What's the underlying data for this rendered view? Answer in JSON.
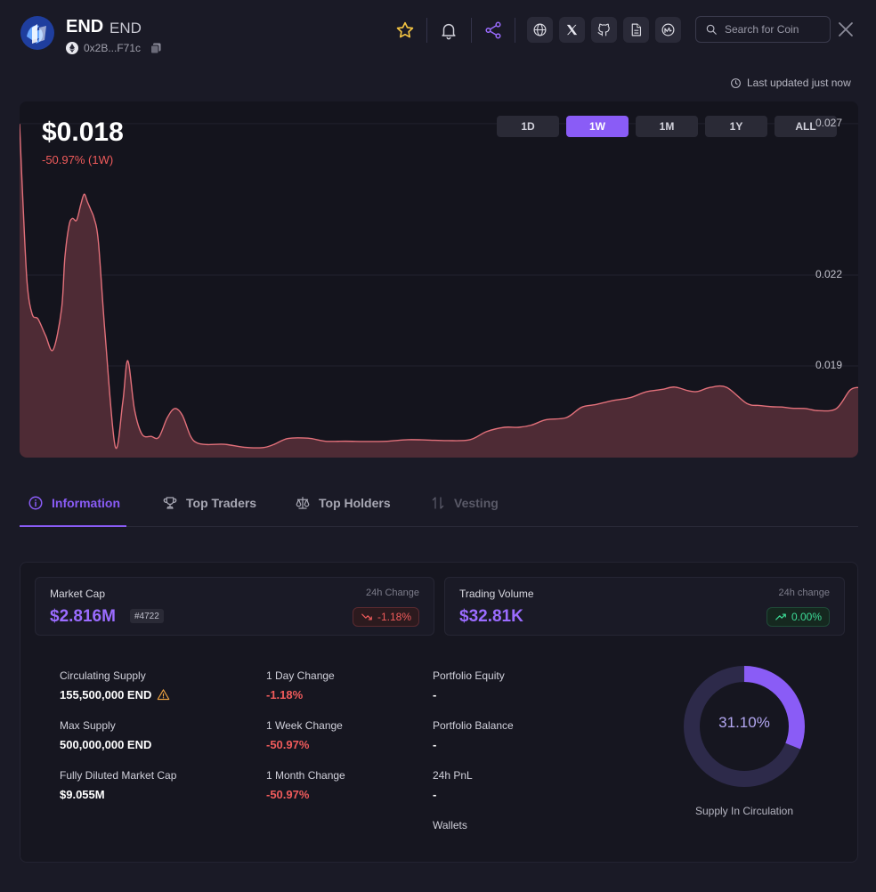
{
  "coin": {
    "name": "END",
    "ticker": "END",
    "address": "0x2B...F71c"
  },
  "search": {
    "placeholder": "Search for Coin"
  },
  "updated_text": "Last updated just now",
  "price_header": {
    "price": "$0.018",
    "change": "-50.97% (1W)"
  },
  "ranges": [
    {
      "label": "1D",
      "active": false
    },
    {
      "label": "1W",
      "active": true
    },
    {
      "label": "1M",
      "active": false
    },
    {
      "label": "1Y",
      "active": false
    },
    {
      "label": "ALL",
      "active": false
    }
  ],
  "chart_data": {
    "type": "area",
    "y_tick_labels": [
      "0.027",
      "0.022",
      "0.019"
    ],
    "y_ticks": [
      0.027,
      0.022,
      0.019
    ],
    "ylim": [
      0.01597,
      0.02738
    ],
    "x": [
      0,
      0.4,
      0.9,
      1.5,
      2.2,
      3.1,
      4.0,
      5.0,
      5.4,
      5.9,
      6.3,
      6.8,
      7.3,
      7.7,
      8.1,
      8.5,
      8.9,
      9.4,
      10.2,
      11.4,
      12.3,
      12.9,
      13.7,
      14.6,
      15.7,
      16.6,
      17.6,
      18.5,
      19.4,
      20.4,
      21.2,
      22.4,
      24.4,
      26.8,
      29.0,
      30.3,
      32.0,
      34.4,
      36.5,
      38.9,
      41.5,
      43.8,
      46.3,
      48.6,
      51.0,
      53.7,
      55.7,
      57.8,
      59.5,
      61.0,
      62.8,
      65.2,
      67.0,
      68.7,
      70.5,
      72.8,
      74.7,
      76.6,
      78.1,
      79.7,
      80.8,
      82.4,
      84.3,
      86.7,
      88.3,
      89.7,
      90.9,
      92.1,
      93.7,
      95.3,
      97.4,
      99.0,
      100
    ],
    "values": [
      0.02699,
      0.02441,
      0.02174,
      0.02071,
      0.02055,
      0.02,
      0.01953,
      0.02087,
      0.02258,
      0.02364,
      0.02387,
      0.02381,
      0.02433,
      0.02467,
      0.02441,
      0.02415,
      0.02386,
      0.02309,
      0.02004,
      0.01634,
      0.01779,
      0.01917,
      0.01756,
      0.01674,
      0.01667,
      0.01664,
      0.01728,
      0.01759,
      0.01737,
      0.01667,
      0.01645,
      0.0164,
      0.01641,
      0.01631,
      0.0163,
      0.0164,
      0.0166,
      0.01661,
      0.01651,
      0.01651,
      0.0165,
      0.01651,
      0.01656,
      0.01655,
      0.01653,
      0.01656,
      0.01683,
      0.01697,
      0.01697,
      0.01704,
      0.01722,
      0.01729,
      0.01763,
      0.01772,
      0.01784,
      0.01795,
      0.01814,
      0.01822,
      0.0183,
      0.01818,
      0.01815,
      0.01829,
      0.01829,
      0.01776,
      0.01769,
      0.01765,
      0.01764,
      0.0176,
      0.01759,
      0.01752,
      0.01759,
      0.01819,
      0.01829
    ],
    "grid": true,
    "colors": {
      "line": "#e2707a",
      "fill": "#4e2b35",
      "grid": "#22222e"
    }
  },
  "tabs": [
    {
      "label": "Information",
      "icon": "info-icon",
      "state": "active"
    },
    {
      "label": "Top Traders",
      "icon": "trophy-icon",
      "state": "normal"
    },
    {
      "label": "Top Holders",
      "icon": "scale-icon",
      "state": "normal"
    },
    {
      "label": "Vesting",
      "icon": "arrows-vertical-icon",
      "state": "disabled"
    }
  ],
  "market_cap": {
    "label": "Market Cap",
    "sub": "24h Change",
    "value": "$2.816M",
    "rank": "#4722",
    "change": "-1.18%"
  },
  "trading_volume": {
    "label": "Trading Volume",
    "sub": "24h change",
    "value": "$32.81K",
    "change": "0.00%"
  },
  "details": {
    "circulating_supply": {
      "label": "Circulating Supply",
      "value": "155,500,000 END"
    },
    "max_supply": {
      "label": "Max Supply",
      "value": "500,000,000 END"
    },
    "fdmc": {
      "label": "Fully Diluted Market Cap",
      "value": "$9.055M"
    },
    "day_change": {
      "label": "1 Day Change",
      "value": "-1.18%"
    },
    "week_change": {
      "label": "1 Week Change",
      "value": "-50.97%"
    },
    "month_change": {
      "label": "1 Month Change",
      "value": "-50.97%"
    },
    "portfolio_equity": {
      "label": "Portfolio Equity",
      "value": "-"
    },
    "portfolio_balance": {
      "label": "Portfolio Balance",
      "value": "-"
    },
    "pnl": {
      "label": "24h PnL",
      "value": "-"
    },
    "wallets": {
      "label": "Wallets"
    }
  },
  "circulation": {
    "percent_label": "31.10%",
    "fraction": 0.311,
    "caption": "Supply In Circulation"
  },
  "colors": {
    "accent": "#8a5cf6",
    "negative": "#f05b5b",
    "positive": "#3ddc97",
    "star": "#f5c542"
  }
}
